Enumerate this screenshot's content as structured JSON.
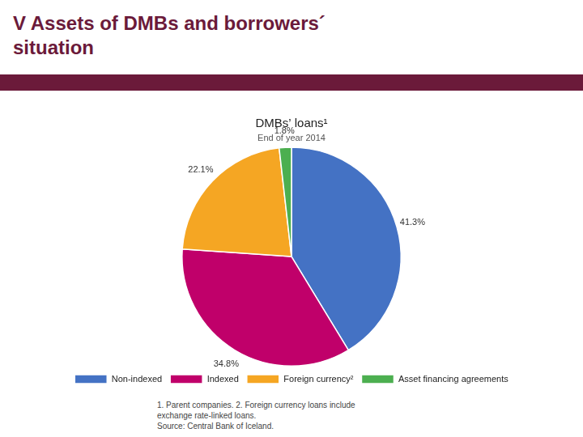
{
  "chart_data": {
    "type": "pie",
    "header_title": [
      "V Assets of DMBs and borrowers´",
      "situation"
    ],
    "header_color": "#6B1A3A",
    "title": "DMBs’ loans¹",
    "subtitle": "End of year 2014",
    "categories": [
      "Non-indexed",
      "Indexed",
      "Foreign currency²",
      "Asset financing agreements"
    ],
    "values": [
      41.3,
      34.8,
      22.1,
      1.8
    ],
    "value_labels": [
      "41.3%",
      "34.8%",
      "22.1%",
      "1.8%"
    ],
    "colors": [
      "#4472C4",
      "#C0006A",
      "#F5A623",
      "#4CAF50"
    ],
    "data_labels": true,
    "legend": "bottom",
    "footnotes": [
      "1. Parent companies. 2. Foreign currency loans include",
      "exchange rate-linked loans.",
      "Source: Central Bank of Iceland."
    ]
  }
}
